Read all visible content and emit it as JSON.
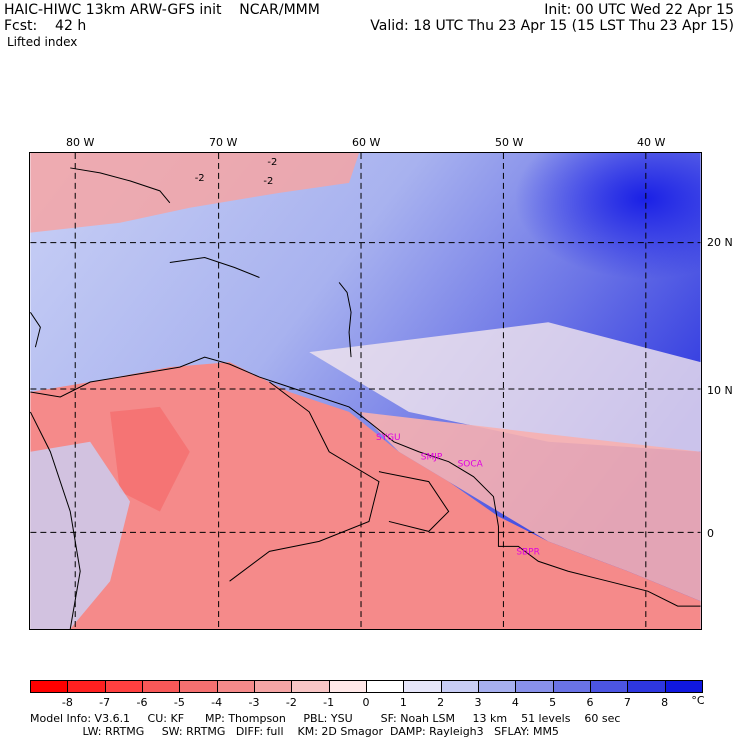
{
  "header": {
    "model_line": "HAIC-HIWC 13km ARW-GFS init    NCAR/MMM",
    "init_line": "Init: 00 UTC Wed 22 Apr 15",
    "fcst_line": "Fcst:    42 h",
    "valid_line": "Valid: 18 UTC Thu 23 Apr 15 (15 LST Thu 23 Apr 15)",
    "field": "Lifted index"
  },
  "map": {
    "lon_labels": [
      "80 W",
      "70 W",
      "60 W",
      "50 W",
      "40 W"
    ],
    "lat_labels": [
      "20 N",
      "10 N",
      "0"
    ],
    "stations": [
      "SYGU",
      "SMJP",
      "SOCA",
      "SBPR"
    ],
    "contour_labels": [
      "-2",
      "-2",
      "-2"
    ],
    "colors": {
      "negative_strong": "#ff2a2a",
      "negative_light": "#f7c8c8",
      "neutral": "#ffffff",
      "positive_light": "#c9d0f5",
      "positive_strong": "#1a20e6",
      "stations": "#e000e0"
    }
  },
  "colorbar": {
    "ticks": [
      "-8",
      "-7",
      "-6",
      "-5",
      "-4",
      "-3",
      "-2",
      "-1",
      "0",
      "1",
      "2",
      "3",
      "4",
      "5",
      "6",
      "7",
      "8"
    ],
    "unit": "°C",
    "colors": [
      "#ff0000",
      "#ff2020",
      "#ff4040",
      "#f85858",
      "#f57070",
      "#f58a8a",
      "#f5a5a5",
      "#f8c5c5",
      "#ffe8e8",
      "#ffffff",
      "#e6e6fa",
      "#c8cdf5",
      "#a6afef",
      "#8891ea",
      "#6a73e6",
      "#4c55e3",
      "#2e37e0",
      "#1018e0"
    ]
  },
  "footer": {
    "line1": "Model Info: V3.6.1     CU: KF      MP: Thompson     PBL: YSU        SF: Noah LSM     13 km    51 levels    60 sec",
    "line2": "               LW: RRTMG     SW: RRTMG   DIFF: full    KM: 2D Smagor  DAMP: Rayleigh3   SFLAY: MM5"
  }
}
